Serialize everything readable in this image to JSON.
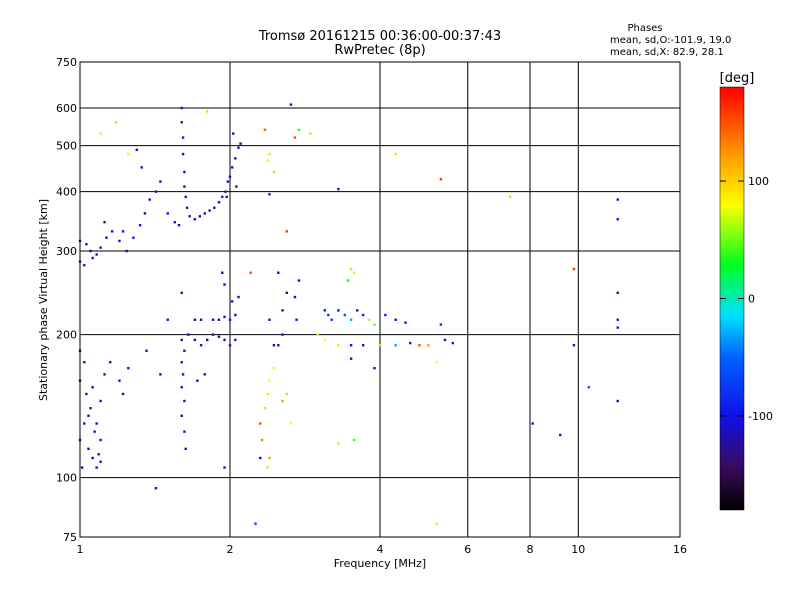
{
  "chart_data": {
    "type": "scatter",
    "title": "Tromsø 20161215 00:36:00-00:37:43",
    "subtitle": "RwPretec (8p)",
    "xlabel": "Frequency [MHz]",
    "ylabel": "Stationary phase Virtual Height [km]",
    "x_scale": "log",
    "y_scale": "log",
    "xlim": [
      1,
      16
    ],
    "ylim": [
      75,
      750
    ],
    "x_ticks": [
      1,
      2,
      4,
      6,
      8,
      10,
      16
    ],
    "x_tick_labels": [
      "1",
      "2",
      "4",
      "6",
      "8",
      "10",
      "16"
    ],
    "y_ticks": [
      75,
      100,
      200,
      300,
      400,
      500,
      600,
      750
    ],
    "y_tick_labels": [
      "75",
      "100",
      "200",
      "300",
      "400",
      "500",
      "600",
      "750"
    ],
    "grid": true,
    "annotation": {
      "heading": "Phases",
      "line1": "mean, sd,O:-101.9, 19.0",
      "line2": "mean, sd,X:  82.9, 28.1"
    },
    "colorbar": {
      "label": "[deg]",
      "range": [
        -180,
        180
      ],
      "ticks": [
        100,
        0,
        -100
      ],
      "tick_labels": [
        "100",
        "0",
        "-100"
      ]
    },
    "points": [
      {
        "x": 1.0,
        "y": 315,
        "phase": -110
      },
      {
        "x": 1.03,
        "y": 310,
        "phase": -100
      },
      {
        "x": 1.05,
        "y": 300,
        "phase": -120
      },
      {
        "x": 1.08,
        "y": 295,
        "phase": -105
      },
      {
        "x": 1.1,
        "y": 305,
        "phase": -115
      },
      {
        "x": 1.13,
        "y": 320,
        "phase": -100
      },
      {
        "x": 1.16,
        "y": 330,
        "phase": -110
      },
      {
        "x": 1.2,
        "y": 315,
        "phase": -105
      },
      {
        "x": 1.24,
        "y": 300,
        "phase": -120
      },
      {
        "x": 1.28,
        "y": 320,
        "phase": -100
      },
      {
        "x": 1.32,
        "y": 340,
        "phase": -110
      },
      {
        "x": 1.35,
        "y": 360,
        "phase": -120
      },
      {
        "x": 1.38,
        "y": 385,
        "phase": -105
      },
      {
        "x": 1.42,
        "y": 400,
        "phase": -110
      },
      {
        "x": 1.45,
        "y": 420,
        "phase": -120
      },
      {
        "x": 1.0,
        "y": 285,
        "phase": -110
      },
      {
        "x": 1.02,
        "y": 280,
        "phase": -100
      },
      {
        "x": 1.06,
        "y": 290,
        "phase": -95
      },
      {
        "x": 1.12,
        "y": 345,
        "phase": -125
      },
      {
        "x": 1.22,
        "y": 330,
        "phase": -105
      },
      {
        "x": 1.3,
        "y": 490,
        "phase": -110
      },
      {
        "x": 1.33,
        "y": 450,
        "phase": -120
      },
      {
        "x": 1.18,
        "y": 560,
        "phase": 60
      },
      {
        "x": 1.25,
        "y": 480,
        "phase": 85
      },
      {
        "x": 1.1,
        "y": 530,
        "phase": 70
      },
      {
        "x": 1.6,
        "y": 600,
        "phase": -110
      },
      {
        "x": 1.6,
        "y": 560,
        "phase": -120
      },
      {
        "x": 1.61,
        "y": 520,
        "phase": -100
      },
      {
        "x": 1.61,
        "y": 480,
        "phase": -110
      },
      {
        "x": 1.62,
        "y": 440,
        "phase": -105
      },
      {
        "x": 1.62,
        "y": 410,
        "phase": -115
      },
      {
        "x": 1.63,
        "y": 390,
        "phase": -110
      },
      {
        "x": 1.64,
        "y": 370,
        "phase": -120
      },
      {
        "x": 1.66,
        "y": 355,
        "phase": -100
      },
      {
        "x": 1.7,
        "y": 350,
        "phase": -110
      },
      {
        "x": 1.74,
        "y": 355,
        "phase": -120
      },
      {
        "x": 1.78,
        "y": 360,
        "phase": -105
      },
      {
        "x": 1.82,
        "y": 365,
        "phase": -110
      },
      {
        "x": 1.86,
        "y": 370,
        "phase": -115
      },
      {
        "x": 1.9,
        "y": 380,
        "phase": -110
      },
      {
        "x": 1.93,
        "y": 390,
        "phase": -100
      },
      {
        "x": 1.96,
        "y": 400,
        "phase": -120
      },
      {
        "x": 1.98,
        "y": 420,
        "phase": -110
      },
      {
        "x": 2.0,
        "y": 430,
        "phase": -105
      },
      {
        "x": 2.02,
        "y": 450,
        "phase": -115
      },
      {
        "x": 2.05,
        "y": 470,
        "phase": -110
      },
      {
        "x": 2.08,
        "y": 495,
        "phase": -100
      },
      {
        "x": 2.1,
        "y": 505,
        "phase": -120
      },
      {
        "x": 2.03,
        "y": 530,
        "phase": -115
      },
      {
        "x": 1.55,
        "y": 345,
        "phase": -110
      },
      {
        "x": 1.58,
        "y": 340,
        "phase": -120
      },
      {
        "x": 1.5,
        "y": 360,
        "phase": -100
      },
      {
        "x": 1.8,
        "y": 590,
        "phase": 60
      },
      {
        "x": 1.97,
        "y": 390,
        "phase": -110
      },
      {
        "x": 2.06,
        "y": 410,
        "phase": -120
      },
      {
        "x": 1.6,
        "y": 195,
        "phase": -110
      },
      {
        "x": 1.65,
        "y": 200,
        "phase": -100
      },
      {
        "x": 1.7,
        "y": 195,
        "phase": -120
      },
      {
        "x": 1.75,
        "y": 190,
        "phase": -110
      },
      {
        "x": 1.8,
        "y": 195,
        "phase": -105
      },
      {
        "x": 1.85,
        "y": 200,
        "phase": -115
      },
      {
        "x": 1.9,
        "y": 198,
        "phase": -110
      },
      {
        "x": 1.95,
        "y": 195,
        "phase": -120
      },
      {
        "x": 2.0,
        "y": 190,
        "phase": -100
      },
      {
        "x": 2.05,
        "y": 195,
        "phase": -110
      },
      {
        "x": 1.62,
        "y": 185,
        "phase": -120
      },
      {
        "x": 1.6,
        "y": 175,
        "phase": -105
      },
      {
        "x": 1.61,
        "y": 165,
        "phase": -110
      },
      {
        "x": 1.6,
        "y": 155,
        "phase": -115
      },
      {
        "x": 1.62,
        "y": 145,
        "phase": -110
      },
      {
        "x": 1.6,
        "y": 135,
        "phase": -120
      },
      {
        "x": 1.62,
        "y": 125,
        "phase": -100
      },
      {
        "x": 1.63,
        "y": 115,
        "phase": -110
      },
      {
        "x": 1.7,
        "y": 215,
        "phase": -120
      },
      {
        "x": 1.75,
        "y": 215,
        "phase": -110
      },
      {
        "x": 1.85,
        "y": 215,
        "phase": -105
      },
      {
        "x": 1.9,
        "y": 215,
        "phase": -115
      },
      {
        "x": 1.95,
        "y": 218,
        "phase": -110
      },
      {
        "x": 2.0,
        "y": 215,
        "phase": -100
      },
      {
        "x": 2.05,
        "y": 220,
        "phase": -120
      },
      {
        "x": 1.93,
        "y": 270,
        "phase": -110
      },
      {
        "x": 1.95,
        "y": 255,
        "phase": -105
      },
      {
        "x": 2.02,
        "y": 235,
        "phase": -115
      },
      {
        "x": 2.08,
        "y": 240,
        "phase": -110
      },
      {
        "x": 1.78,
        "y": 165,
        "phase": -120
      },
      {
        "x": 1.72,
        "y": 160,
        "phase": -110
      },
      {
        "x": 1.95,
        "y": 105,
        "phase": -110
      },
      {
        "x": 1.6,
        "y": 245,
        "phase": -120
      },
      {
        "x": 1.5,
        "y": 215,
        "phase": -100
      },
      {
        "x": 1.0,
        "y": 185,
        "phase": -110
      },
      {
        "x": 1.02,
        "y": 175,
        "phase": -100
      },
      {
        "x": 1.0,
        "y": 160,
        "phase": -120
      },
      {
        "x": 1.03,
        "y": 150,
        "phase": -110
      },
      {
        "x": 1.05,
        "y": 140,
        "phase": -105
      },
      {
        "x": 1.02,
        "y": 130,
        "phase": -115
      },
      {
        "x": 1.0,
        "y": 120,
        "phase": -110
      },
      {
        "x": 1.04,
        "y": 115,
        "phase": -100
      },
      {
        "x": 1.06,
        "y": 110,
        "phase": -120
      },
      {
        "x": 1.08,
        "y": 105,
        "phase": -110
      },
      {
        "x": 1.1,
        "y": 108,
        "phase": -105
      },
      {
        "x": 1.1,
        "y": 120,
        "phase": -115
      },
      {
        "x": 1.08,
        "y": 130,
        "phase": -110
      },
      {
        "x": 1.1,
        "y": 145,
        "phase": -100
      },
      {
        "x": 1.06,
        "y": 155,
        "phase": -120
      },
      {
        "x": 1.12,
        "y": 165,
        "phase": -110
      },
      {
        "x": 1.07,
        "y": 125,
        "phase": -95
      },
      {
        "x": 1.01,
        "y": 105,
        "phase": -110
      },
      {
        "x": 1.04,
        "y": 135,
        "phase": -110
      },
      {
        "x": 1.09,
        "y": 112,
        "phase": -115
      },
      {
        "x": 1.15,
        "y": 175,
        "phase": -110
      },
      {
        "x": 1.2,
        "y": 160,
        "phase": -105
      },
      {
        "x": 1.25,
        "y": 170,
        "phase": -110
      },
      {
        "x": 1.22,
        "y": 150,
        "phase": -115
      },
      {
        "x": 1.45,
        "y": 165,
        "phase": -110
      },
      {
        "x": 1.42,
        "y": 95,
        "phase": -110
      },
      {
        "x": 1.36,
        "y": 185,
        "phase": -120
      },
      {
        "x": 2.35,
        "y": 540,
        "phase": 140
      },
      {
        "x": 2.4,
        "y": 480,
        "phase": 90
      },
      {
        "x": 2.38,
        "y": 465,
        "phase": 70
      },
      {
        "x": 2.45,
        "y": 440,
        "phase": 60
      },
      {
        "x": 2.7,
        "y": 520,
        "phase": 150
      },
      {
        "x": 2.75,
        "y": 540,
        "phase": 40
      },
      {
        "x": 2.9,
        "y": 530,
        "phase": 60
      },
      {
        "x": 2.6,
        "y": 330,
        "phase": 160
      },
      {
        "x": 2.4,
        "y": 395,
        "phase": -100
      },
      {
        "x": 2.65,
        "y": 610,
        "phase": -120
      },
      {
        "x": 3.3,
        "y": 405,
        "phase": -110
      },
      {
        "x": 4.3,
        "y": 480,
        "phase": 95
      },
      {
        "x": 5.3,
        "y": 425,
        "phase": 160
      },
      {
        "x": 7.3,
        "y": 390,
        "phase": 100
      },
      {
        "x": 12.0,
        "y": 385,
        "phase": -110
      },
      {
        "x": 12.0,
        "y": 350,
        "phase": -100
      },
      {
        "x": 2.2,
        "y": 270,
        "phase": 150
      },
      {
        "x": 2.5,
        "y": 270,
        "phase": -100
      },
      {
        "x": 2.6,
        "y": 245,
        "phase": -115
      },
      {
        "x": 2.55,
        "y": 225,
        "phase": -110
      },
      {
        "x": 2.7,
        "y": 240,
        "phase": -120
      },
      {
        "x": 2.75,
        "y": 260,
        "phase": -110
      },
      {
        "x": 2.72,
        "y": 215,
        "phase": -105
      },
      {
        "x": 2.4,
        "y": 215,
        "phase": -110
      },
      {
        "x": 2.5,
        "y": 190,
        "phase": -110
      },
      {
        "x": 2.55,
        "y": 200,
        "phase": -100
      },
      {
        "x": 2.45,
        "y": 190,
        "phase": -120
      },
      {
        "x": 3.1,
        "y": 225,
        "phase": -90
      },
      {
        "x": 3.15,
        "y": 220,
        "phase": -80
      },
      {
        "x": 3.2,
        "y": 215,
        "phase": -70
      },
      {
        "x": 3.3,
        "y": 225,
        "phase": -95
      },
      {
        "x": 3.4,
        "y": 220,
        "phase": -60
      },
      {
        "x": 3.5,
        "y": 215,
        "phase": -30
      },
      {
        "x": 3.6,
        "y": 225,
        "phase": -100
      },
      {
        "x": 3.7,
        "y": 220,
        "phase": -90
      },
      {
        "x": 3.8,
        "y": 215,
        "phase": 60
      },
      {
        "x": 3.9,
        "y": 210,
        "phase": 50
      },
      {
        "x": 4.1,
        "y": 220,
        "phase": -90
      },
      {
        "x": 4.3,
        "y": 215,
        "phase": -110
      },
      {
        "x": 4.5,
        "y": 212,
        "phase": -90
      },
      {
        "x": 3.45,
        "y": 260,
        "phase": 30
      },
      {
        "x": 3.5,
        "y": 275,
        "phase": 60
      },
      {
        "x": 3.55,
        "y": 270,
        "phase": 90
      },
      {
        "x": 3.0,
        "y": 200,
        "phase": 70
      },
      {
        "x": 3.1,
        "y": 195,
        "phase": 80
      },
      {
        "x": 3.3,
        "y": 190,
        "phase": 90
      },
      {
        "x": 3.5,
        "y": 190,
        "phase": -100
      },
      {
        "x": 3.7,
        "y": 190,
        "phase": -110
      },
      {
        "x": 3.9,
        "y": 170,
        "phase": -120
      },
      {
        "x": 4.0,
        "y": 190,
        "phase": 60
      },
      {
        "x": 4.3,
        "y": 190,
        "phase": -30
      },
      {
        "x": 4.6,
        "y": 192,
        "phase": -110
      },
      {
        "x": 4.8,
        "y": 190,
        "phase": 150
      },
      {
        "x": 5.0,
        "y": 190,
        "phase": 120
      },
      {
        "x": 5.2,
        "y": 175,
        "phase": 80
      },
      {
        "x": 5.4,
        "y": 195,
        "phase": -110
      },
      {
        "x": 5.6,
        "y": 192,
        "phase": -100
      },
      {
        "x": 5.3,
        "y": 210,
        "phase": -80
      },
      {
        "x": 3.5,
        "y": 178,
        "phase": -110
      },
      {
        "x": 2.45,
        "y": 170,
        "phase": 85
      },
      {
        "x": 2.4,
        "y": 160,
        "phase": 75
      },
      {
        "x": 2.38,
        "y": 150,
        "phase": 90
      },
      {
        "x": 2.35,
        "y": 140,
        "phase": 100
      },
      {
        "x": 2.3,
        "y": 130,
        "phase": 150
      },
      {
        "x": 2.32,
        "y": 120,
        "phase": 130
      },
      {
        "x": 2.4,
        "y": 110,
        "phase": 120
      },
      {
        "x": 2.38,
        "y": 105,
        "phase": 95
      },
      {
        "x": 2.6,
        "y": 150,
        "phase": 100
      },
      {
        "x": 2.65,
        "y": 130,
        "phase": 80
      },
      {
        "x": 2.55,
        "y": 145,
        "phase": 120
      },
      {
        "x": 3.55,
        "y": 120,
        "phase": 40
      },
      {
        "x": 3.3,
        "y": 118,
        "phase": 60
      },
      {
        "x": 2.3,
        "y": 110,
        "phase": -120
      },
      {
        "x": 2.25,
        "y": 80,
        "phase": -60
      },
      {
        "x": 5.2,
        "y": 80,
        "phase": 95
      },
      {
        "x": 9.8,
        "y": 275,
        "phase": 160
      },
      {
        "x": 9.8,
        "y": 190,
        "phase": -100
      },
      {
        "x": 8.1,
        "y": 130,
        "phase": -110
      },
      {
        "x": 9.2,
        "y": 123,
        "phase": -120
      },
      {
        "x": 10.5,
        "y": 155,
        "phase": -60
      },
      {
        "x": 12.0,
        "y": 145,
        "phase": -115
      },
      {
        "x": 12.0,
        "y": 245,
        "phase": -120
      },
      {
        "x": 12.0,
        "y": 215,
        "phase": -110
      },
      {
        "x": 12.0,
        "y": 207,
        "phase": -100
      }
    ]
  }
}
